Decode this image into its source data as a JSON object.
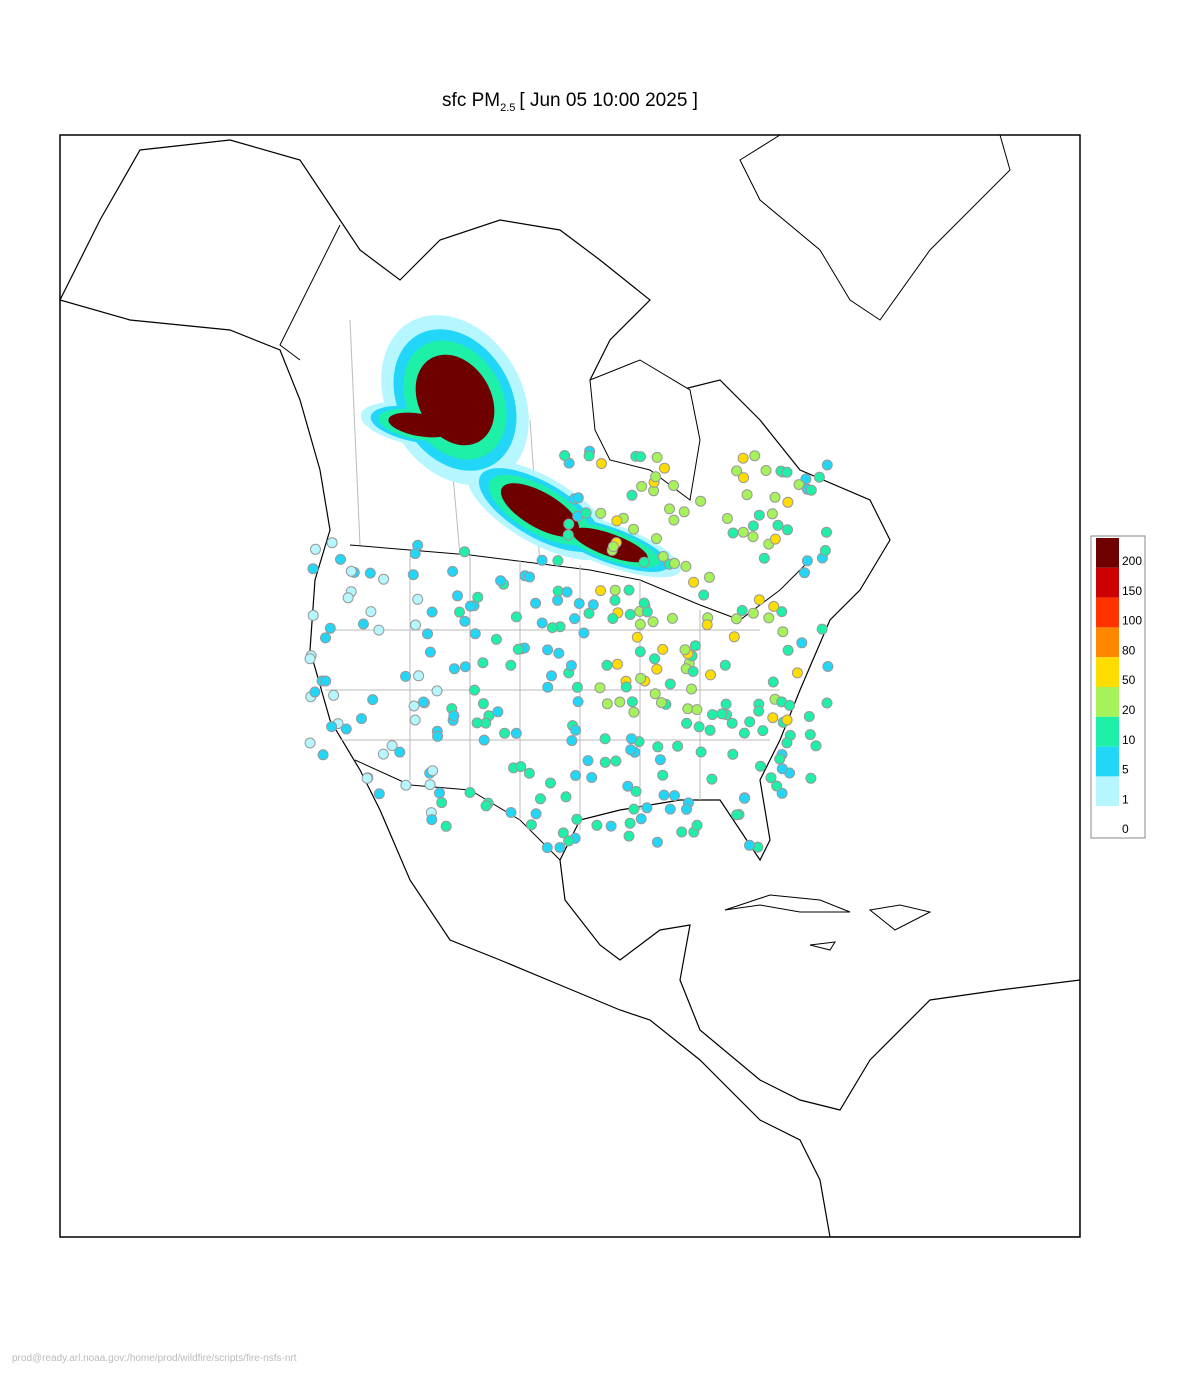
{
  "title": {
    "prefix": "sfc PM",
    "subscript": "2.5",
    "suffix": "[ Jun 05 10:00 2025 ]"
  },
  "legend": {
    "levels": [
      {
        "value": 200,
        "color": "#6e0000"
      },
      {
        "value": 150,
        "color": "#cc0000"
      },
      {
        "value": 100,
        "color": "#ff3300"
      },
      {
        "value": 80,
        "color": "#ff8800"
      },
      {
        "value": 50,
        "color": "#ffdd00"
      },
      {
        "value": 20,
        "color": "#a6f25a"
      },
      {
        "value": 10,
        "color": "#1ef0a8"
      },
      {
        "value": 5,
        "color": "#22d6f8"
      },
      {
        "value": 1,
        "color": "#b6f6ff"
      },
      {
        "value": 0,
        "color": "#ffffff"
      }
    ]
  },
  "footer": "prod@ready.arl.noaa.gov:/home/prod/wildfire/scripts/fire-nsfs-nrt"
}
